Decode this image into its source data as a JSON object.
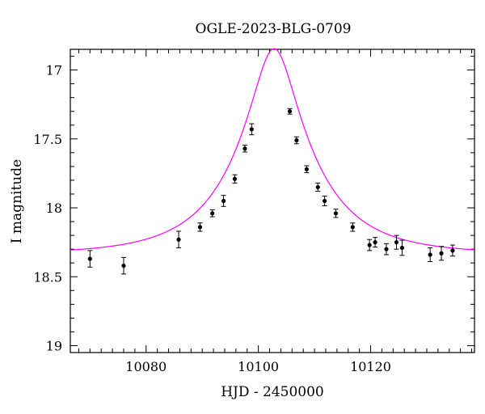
{
  "chart_data": {
    "type": "scatter",
    "title": "OGLE-2023-BLG-0709",
    "xlabel": "HJD - 2450000",
    "ylabel": "I magnitude",
    "xlim": [
      10066.5,
      10138.5
    ],
    "ylim": [
      19.05,
      16.85
    ],
    "y_inverted": true,
    "grid": false,
    "x_major_ticks": [
      10080,
      10100,
      10120
    ],
    "x_minor_step": 2,
    "y_major_ticks": [
      17,
      17.5,
      18,
      18.5,
      19
    ],
    "y_tick_labels": [
      "17",
      "17.5",
      "18",
      "18.5",
      "19"
    ],
    "y_minor_step": 0.1,
    "series": [
      {
        "role": "observations",
        "color": "#000000",
        "points": [
          {
            "x": 10070.0,
            "y": 18.37,
            "err": 0.06
          },
          {
            "x": 10076.0,
            "y": 18.42,
            "err": 0.06
          },
          {
            "x": 10085.8,
            "y": 18.23,
            "err": 0.06
          },
          {
            "x": 10089.6,
            "y": 18.14,
            "err": 0.03
          },
          {
            "x": 10091.8,
            "y": 18.04,
            "err": 0.025
          },
          {
            "x": 10093.8,
            "y": 17.95,
            "err": 0.04
          },
          {
            "x": 10095.8,
            "y": 17.79,
            "err": 0.03
          },
          {
            "x": 10097.6,
            "y": 17.57,
            "err": 0.025
          },
          {
            "x": 10098.8,
            "y": 17.43,
            "err": 0.04
          },
          {
            "x": 10105.6,
            "y": 17.3,
            "err": 0.02
          },
          {
            "x": 10106.8,
            "y": 17.51,
            "err": 0.025
          },
          {
            "x": 10108.6,
            "y": 17.72,
            "err": 0.025
          },
          {
            "x": 10110.6,
            "y": 17.85,
            "err": 0.03
          },
          {
            "x": 10111.8,
            "y": 17.95,
            "err": 0.035
          },
          {
            "x": 10113.8,
            "y": 18.04,
            "err": 0.03
          },
          {
            "x": 10116.8,
            "y": 18.14,
            "err": 0.03
          },
          {
            "x": 10119.8,
            "y": 18.27,
            "err": 0.04
          },
          {
            "x": 10120.8,
            "y": 18.25,
            "err": 0.035
          },
          {
            "x": 10122.8,
            "y": 18.3,
            "err": 0.04
          },
          {
            "x": 10124.6,
            "y": 18.25,
            "err": 0.05
          },
          {
            "x": 10125.6,
            "y": 18.29,
            "err": 0.055
          },
          {
            "x": 10130.6,
            "y": 18.34,
            "err": 0.05
          },
          {
            "x": 10132.6,
            "y": 18.33,
            "err": 0.05
          },
          {
            "x": 10134.6,
            "y": 18.31,
            "err": 0.04
          }
        ]
      },
      {
        "role": "model",
        "color": "#ff00ff",
        "model": {
          "type": "paczynski",
          "t0": 10102.8,
          "tE": 14.0,
          "u0": 0.26,
          "baseline": 18.335
        }
      }
    ]
  }
}
